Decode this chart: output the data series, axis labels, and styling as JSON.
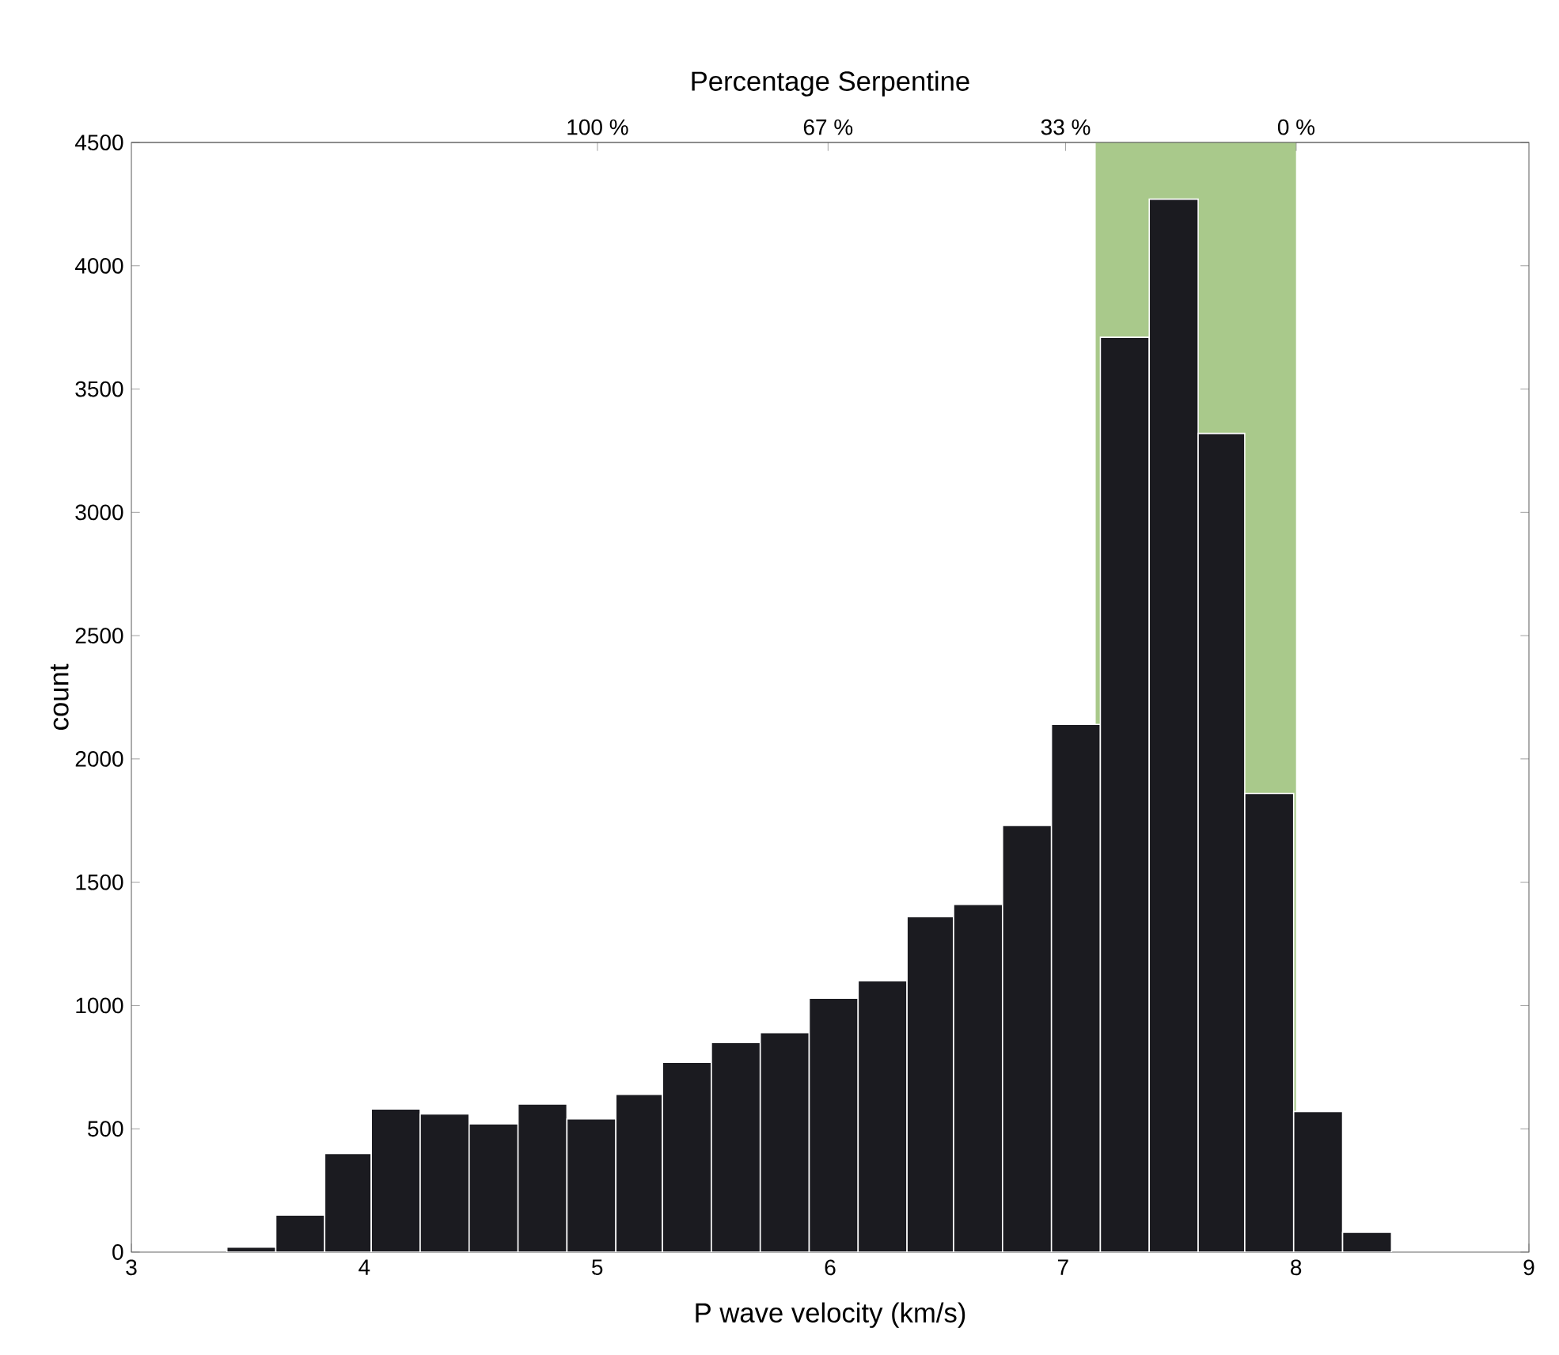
{
  "chart_data": {
    "type": "histogram",
    "xlabel": "P wave velocity (km/s)",
    "ylabel": "count",
    "x2label": "Percentage Serpentine",
    "bins": [
      3.41,
      3.62,
      3.83,
      4.03,
      4.24,
      4.45,
      4.66,
      4.87,
      5.08,
      5.28,
      5.49,
      5.7,
      5.91,
      6.12,
      6.33,
      6.53,
      6.74,
      6.95,
      7.16,
      7.37,
      7.58,
      7.78,
      7.99,
      8.2,
      8.41
    ],
    "values": [
      20,
      150,
      400,
      580,
      560,
      520,
      600,
      540,
      640,
      770,
      850,
      890,
      1030,
      1100,
      1360,
      1410,
      1730,
      2140,
      3710,
      4270,
      3320,
      1860,
      570,
      80
    ],
    "color": "#1b1b20",
    "xlim": [
      3,
      9
    ],
    "xticks": [
      3,
      4,
      5,
      6,
      7,
      8,
      9
    ],
    "ylim": [
      0,
      4500
    ],
    "yticks": [
      0,
      500,
      1000,
      1500,
      2000,
      2500,
      3000,
      3500,
      4000,
      4500
    ],
    "x2lim": [
      166.7,
      -33.3
    ],
    "x2ticks": [
      {
        "value": 100,
        "label": "100 %"
      },
      {
        "value": 67,
        "label": "67 %"
      },
      {
        "value": 33,
        "label": "33 %"
      },
      {
        "value": 0,
        "label": "0 %"
      }
    ],
    "bands": [
      {
        "axis": "x",
        "from": 7.14,
        "to": 8.0,
        "color": "#a9c98b"
      }
    ],
    "grid": false
  }
}
